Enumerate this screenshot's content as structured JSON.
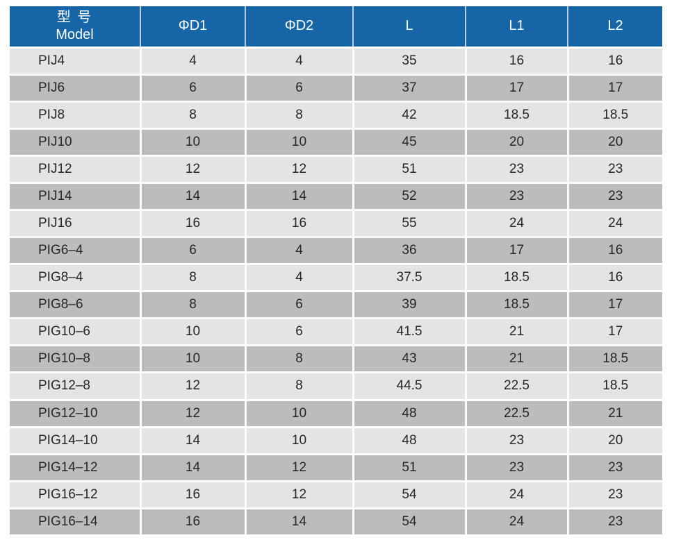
{
  "colors": {
    "header_bg": "#1665a7",
    "header_text": "#ffffff",
    "row_light_bg": "#e5e4e2",
    "row_dark_bg": "#bdbcba",
    "separator": "#ffffff",
    "header_separator": "#b9cfe3",
    "body_text": "#262626"
  },
  "table": {
    "model_header": {
      "zh": "型 号",
      "en": "Model"
    },
    "columns": [
      {
        "label": "ΦD1"
      },
      {
        "label": "ΦD2"
      },
      {
        "label": "L"
      },
      {
        "label": "L1"
      },
      {
        "label": "L2"
      }
    ],
    "rows": [
      {
        "model": "PIJ4",
        "values": [
          "4",
          "4",
          "35",
          "16",
          "16"
        ]
      },
      {
        "model": "PIJ6",
        "values": [
          "6",
          "6",
          "37",
          "17",
          "17"
        ]
      },
      {
        "model": "PIJ8",
        "values": [
          "8",
          "8",
          "42",
          "18.5",
          "18.5"
        ]
      },
      {
        "model": "PIJ10",
        "values": [
          "10",
          "10",
          "45",
          "20",
          "20"
        ]
      },
      {
        "model": "PIJ12",
        "values": [
          "12",
          "12",
          "51",
          "23",
          "23"
        ]
      },
      {
        "model": "PIJ14",
        "values": [
          "14",
          "14",
          "52",
          "23",
          "23"
        ]
      },
      {
        "model": "PIJ16",
        "values": [
          "16",
          "16",
          "55",
          "24",
          "24"
        ]
      },
      {
        "model": "PIG6–4",
        "values": [
          "6",
          "4",
          "36",
          "17",
          "16"
        ]
      },
      {
        "model": "PIG8–4",
        "values": [
          "8",
          "4",
          "37.5",
          "18.5",
          "16"
        ]
      },
      {
        "model": "PIG8–6",
        "values": [
          "8",
          "6",
          "39",
          "18.5",
          "17"
        ]
      },
      {
        "model": "PIG10–6",
        "values": [
          "10",
          "6",
          "41.5",
          "21",
          "17"
        ]
      },
      {
        "model": "PIG10–8",
        "values": [
          "10",
          "8",
          "43",
          "21",
          "18.5"
        ]
      },
      {
        "model": "PIG12–8",
        "values": [
          "12",
          "8",
          "44.5",
          "22.5",
          "18.5"
        ]
      },
      {
        "model": "PIG12–10",
        "values": [
          "12",
          "10",
          "48",
          "22.5",
          "21"
        ]
      },
      {
        "model": "PIG14–10",
        "values": [
          "14",
          "10",
          "48",
          "23",
          "20"
        ]
      },
      {
        "model": "PIG14–12",
        "values": [
          "14",
          "12",
          "51",
          "23",
          "23"
        ]
      },
      {
        "model": "PIG16–12",
        "values": [
          "16",
          "12",
          "54",
          "24",
          "23"
        ]
      },
      {
        "model": "PIG16–14",
        "values": [
          "16",
          "14",
          "54",
          "24",
          "23"
        ]
      }
    ]
  },
  "chart_data": {
    "type": "table",
    "title": "",
    "columns": [
      "型 号 Model",
      "ΦD1",
      "ΦD2",
      "L",
      "L1",
      "L2"
    ],
    "rows": [
      [
        "PIJ4",
        4,
        4,
        35,
        16,
        16
      ],
      [
        "PIJ6",
        6,
        6,
        37,
        17,
        17
      ],
      [
        "PIJ8",
        8,
        8,
        42,
        18.5,
        18.5
      ],
      [
        "PIJ10",
        10,
        10,
        45,
        20,
        20
      ],
      [
        "PIJ12",
        12,
        12,
        51,
        23,
        23
      ],
      [
        "PIJ14",
        14,
        14,
        52,
        23,
        23
      ],
      [
        "PIJ16",
        16,
        16,
        55,
        24,
        24
      ],
      [
        "PIG6–4",
        6,
        4,
        36,
        17,
        16
      ],
      [
        "PIG8–4",
        8,
        4,
        37.5,
        18.5,
        16
      ],
      [
        "PIG8–6",
        8,
        6,
        39,
        18.5,
        17
      ],
      [
        "PIG10–6",
        10,
        6,
        41.5,
        21,
        17
      ],
      [
        "PIG10–8",
        10,
        8,
        43,
        21,
        18.5
      ],
      [
        "PIG12–8",
        12,
        8,
        44.5,
        22.5,
        18.5
      ],
      [
        "PIG12–10",
        12,
        10,
        48,
        22.5,
        21
      ],
      [
        "PIG14–10",
        14,
        10,
        48,
        23,
        20
      ],
      [
        "PIG14–12",
        14,
        12,
        51,
        23,
        23
      ],
      [
        "PIG16–12",
        16,
        12,
        54,
        24,
        23
      ],
      [
        "PIG16–14",
        16,
        14,
        54,
        24,
        23
      ]
    ]
  }
}
